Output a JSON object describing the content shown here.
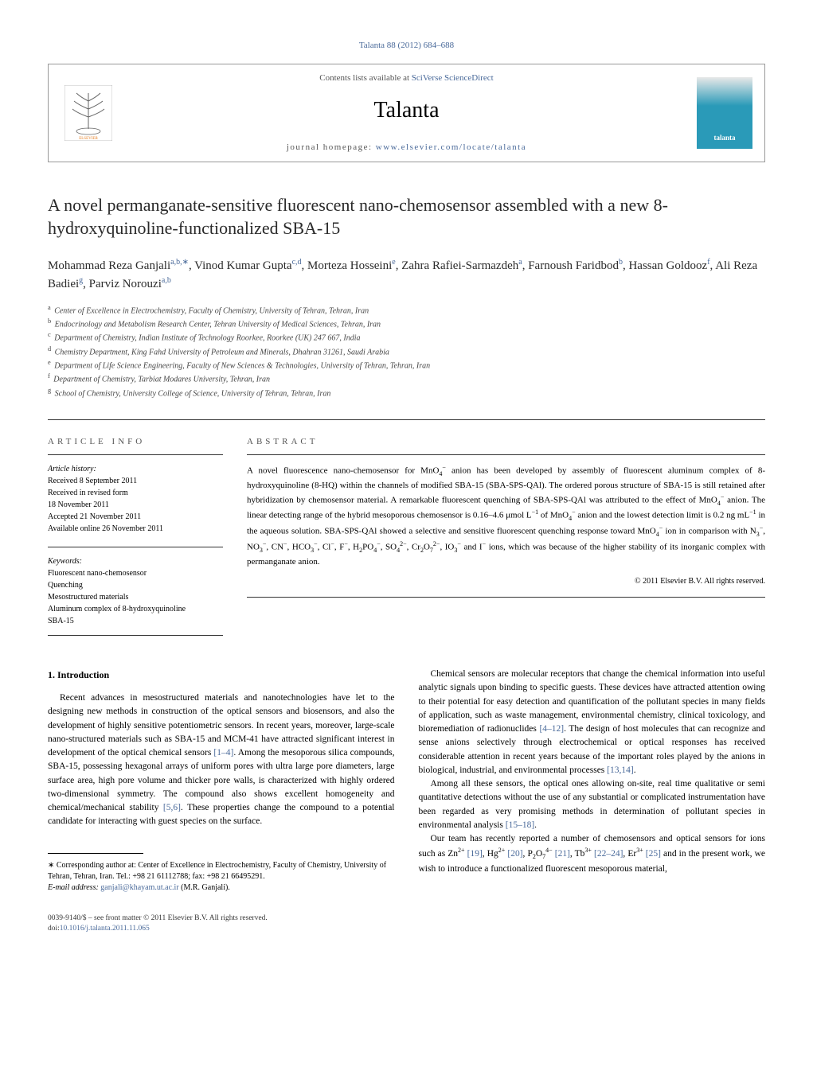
{
  "citation": "Talanta 88 (2012) 684–688",
  "header": {
    "contents_prefix": "Contents lists available at ",
    "contents_link": "SciVerse ScienceDirect",
    "journal": "Talanta",
    "homepage_prefix": "journal homepage: ",
    "homepage_url": "www.elsevier.com/locate/talanta",
    "cover_label": "talanta"
  },
  "title": "A novel permanganate-sensitive fluorescent nano-chemosensor assembled with a new 8-hydroxyquinoline-functionalized SBA-15",
  "authors_html": "Mohammad Reza Ganjali<sup>a,b,∗</sup>, Vinod Kumar Gupta<sup>c,d</sup>, Morteza Hosseini<sup>e</sup>, Zahra Rafiei-Sarmazdeh<sup>a</sup>, Farnoush Faridbod<sup>b</sup>, Hassan Goldooz<sup>f</sup>, Ali Reza Badiei<sup>g</sup>, Parviz Norouzi<sup>a,b</sup>",
  "affiliations": [
    {
      "sup": "a",
      "text": "Center of Excellence in Electrochemistry, Faculty of Chemistry, University of Tehran, Tehran, Iran"
    },
    {
      "sup": "b",
      "text": "Endocrinology and Metabolism Research Center, Tehran University of Medical Sciences, Tehran, Iran"
    },
    {
      "sup": "c",
      "text": "Department of Chemistry, Indian Institute of Technology Roorkee, Roorkee (UK) 247 667, India"
    },
    {
      "sup": "d",
      "text": "Chemistry Department, King Fahd University of Petroleum and Minerals, Dhahran 31261, Saudi Arabia"
    },
    {
      "sup": "e",
      "text": "Department of Life Science Engineering, Faculty of New Sciences & Technologies, University of Tehran, Tehran, Iran"
    },
    {
      "sup": "f",
      "text": "Department of Chemistry, Tarbiat Modares University, Tehran, Iran"
    },
    {
      "sup": "g",
      "text": "School of Chemistry, University College of Science, University of Tehran, Tehran, Iran"
    }
  ],
  "article_info": {
    "heading": "article info",
    "history_label": "Article history:",
    "history": [
      "Received 8 September 2011",
      "Received in revised form",
      "18 November 2011",
      "Accepted 21 November 2011",
      "Available online 26 November 2011"
    ],
    "keywords_label": "Keywords:",
    "keywords": [
      "Fluorescent nano-chemosensor",
      "Quenching",
      "Mesostructured materials",
      "Aluminum complex of 8-hydroxyquinoline",
      "SBA-15"
    ]
  },
  "abstract": {
    "heading": "abstract",
    "text_html": "A novel fluorescence nano-chemosensor for MnO<sub>4</sub><sup>−</sup> anion has been developed by assembly of fluorescent aluminum complex of 8-hydroxyquinoline (8-HQ) within the channels of modified SBA-15 (SBA-SPS-QAl). The ordered porous structure of SBA-15 is still retained after hybridization by chemosensor material. A remarkable fluorescent quenching of SBA-SPS-QAl was attributed to the effect of MnO<sub>4</sub><sup>−</sup> anion. The linear detecting range of the hybrid mesoporous chemosensor is 0.16–4.6 μmol L<sup>−1</sup> of MnO<sub>4</sub><sup>−</sup> anion and the lowest detection limit is 0.2 ng mL<sup>−1</sup> in the aqueous solution. SBA-SPS-QAl showed a selective and sensitive fluorescent quenching response toward MnO<sub>4</sub><sup>−</sup> ion in comparison with N<sub>3</sub><sup>−</sup>, NO<sub>3</sub><sup>−</sup>, CN<sup>−</sup>, HCO<sub>3</sub><sup>−</sup>, Cl<sup>−</sup>, F<sup>−</sup>, H<sub>2</sub>PO<sub>4</sub><sup>−</sup>, SO<sub>4</sub><sup>2−</sup>, Cr<sub>2</sub>O<sub>7</sub><sup>2−</sup>, IO<sub>3</sub><sup>−</sup> and I<sup>−</sup> ions, which was because of the higher stability of its inorganic complex with permanganate anion.",
    "copyright": "© 2011 Elsevier B.V. All rights reserved."
  },
  "body": {
    "section_heading": "1. Introduction",
    "left_paragraphs": [
      "Recent advances in mesostructured materials and nanotechnologies have let to the designing new methods in construction of the optical sensors and biosensors, and also the development of highly sensitive potentiometric sensors. In recent years, moreover, large-scale nano-structured materials such as SBA-15 and MCM-41 have attracted significant interest in development of the optical chemical sensors <a href='#'>[1–4]</a>. Among the mesoporous silica compounds, SBA-15, possessing hexagonal arrays of uniform pores with ultra large pore diameters, large surface area, high pore volume and thicker pore walls, is characterized with highly ordered two-dimensional symmetry. The compound also shows excellent homogeneity and chemical/mechanical stability <a href='#'>[5,6]</a>. These properties change the compound to a potential candidate for interacting with guest species on the surface."
    ],
    "right_paragraphs": [
      "Chemical sensors are molecular receptors that change the chemical information into useful analytic signals upon binding to specific guests. These devices have attracted attention owing to their potential for easy detection and quantification of the pollutant species in many fields of application, such as waste management, environmental chemistry, clinical toxicology, and bioremediation of radionuclides <a href='#'>[4–12]</a>. The design of host molecules that can recognize and sense anions selectively through electrochemical or optical responses has received considerable attention in recent years because of the important roles played by the anions in biological, industrial, and environmental processes <a href='#'>[13,14]</a>.",
      "Among all these sensors, the optical ones allowing on-site, real time qualitative or semi quantitative detections without the use of any substantial or complicated instrumentation have been regarded as very promising methods in determination of pollutant species in environmental analysis <a href='#'>[15–18]</a>.",
      "Our team has recently reported a number of chemosensors and optical sensors for ions such as Zn<sup>2+</sup> <a href='#'>[19]</a>, Hg<sup>2+</sup> <a href='#'>[20]</a>, P<sub>2</sub>O<sub>7</sub><sup>4−</sup> <a href='#'>[21]</a>, Tb<sup>3+</sup> <a href='#'>[22–24]</a>, Er<sup>3+</sup> <a href='#'>[25]</a> and in the present work, we wish to introduce a functionalized fluorescent mesoporous material,"
    ]
  },
  "footnote": {
    "corresponding": "∗ Corresponding author at: Center of Excellence in Electrochemistry, Faculty of Chemistry, University of Tehran, Tehran, Iran. Tel.: +98 21 61112788; fax: +98 21 66495291.",
    "email_label": "E-mail address: ",
    "email": "ganjali@khayam.ut.ac.ir",
    "email_suffix": " (M.R. Ganjali)."
  },
  "footer": {
    "issn": "0039-9140/$ – see front matter © 2011 Elsevier B.V. All rights reserved.",
    "doi_label": "doi:",
    "doi": "10.1016/j.talanta.2011.11.065"
  },
  "colors": {
    "link": "#4a6a9a",
    "cover_gradient_top": "#e8e8e8",
    "cover_gradient_bottom": "#2a9ab8",
    "text": "#000000",
    "heading_gray": "#555555"
  }
}
